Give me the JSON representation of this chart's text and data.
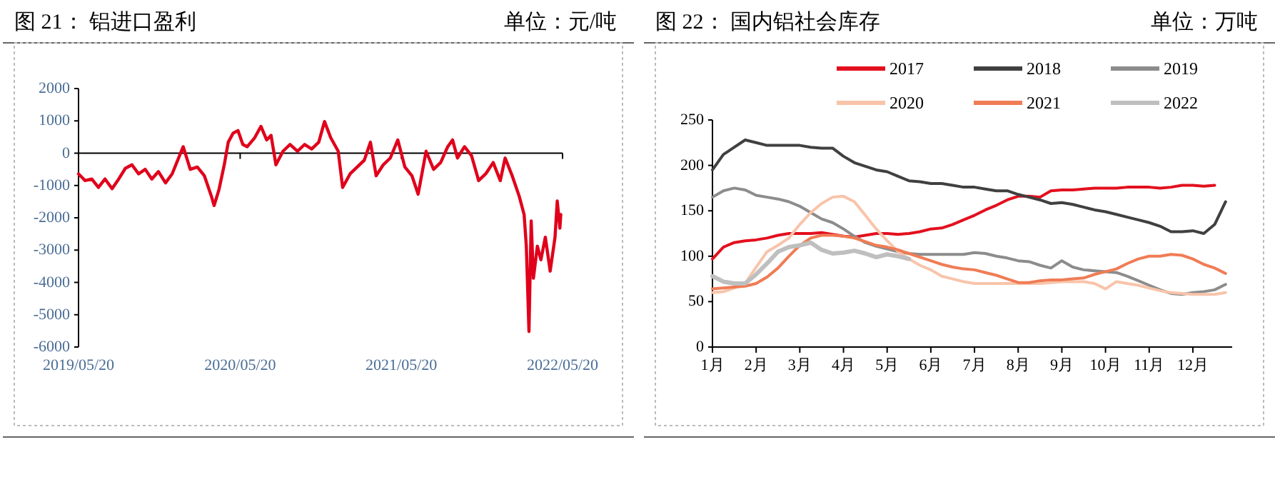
{
  "chart_data": [
    {
      "type": "line",
      "title": "图 21：  铝进口盈利",
      "annotations": [
        "单位：元/吨"
      ],
      "x": [
        "2019-05-20",
        "2019-06-04",
        "2019-06-19",
        "2019-07-04",
        "2019-07-19",
        "2019-08-04",
        "2019-08-19",
        "2019-09-03",
        "2019-09-18",
        "2019-10-03",
        "2019-10-18",
        "2019-11-02",
        "2019-11-17",
        "2019-12-03",
        "2019-12-18",
        "2020-01-12",
        "2020-01-28",
        "2020-02-13",
        "2020-02-29",
        "2020-03-16",
        "2020-03-22",
        "2020-04-02",
        "2020-04-14",
        "2020-04-23",
        "2020-05-04",
        "2020-05-15",
        "2020-05-26",
        "2020-06-05",
        "2020-06-22",
        "2020-07-06",
        "2020-07-19",
        "2020-07-29",
        "2020-08-09",
        "2020-08-25",
        "2020-09-10",
        "2020-09-27",
        "2020-10-13",
        "2020-10-29",
        "2020-11-14",
        "2020-11-27",
        "2020-12-11",
        "2020-12-28",
        "2021-01-07",
        "2021-01-24",
        "2021-02-09",
        "2021-02-25",
        "2021-03-11",
        "2021-03-24",
        "2021-04-09",
        "2021-04-25",
        "2021-05-12",
        "2021-05-28",
        "2021-06-13",
        "2021-06-27",
        "2021-07-15",
        "2021-08-01",
        "2021-08-17",
        "2021-09-02",
        "2021-09-13",
        "2021-09-24",
        "2021-10-10",
        "2021-10-26",
        "2021-11-11",
        "2021-11-27",
        "2021-12-14",
        "2021-12-30",
        "2022-01-10",
        "2022-01-26",
        "2022-02-11",
        "2022-02-22",
        "2022-02-27",
        "2022-03-05",
        "2022-03-10",
        "2022-03-15",
        "2022-03-24",
        "2022-04-01",
        "2022-04-11",
        "2022-04-22",
        "2022-05-03",
        "2022-05-08",
        "2022-05-14",
        "2022-05-16"
      ],
      "series": [
        {
          "color": "#e0001b",
          "values": [
            -640,
            -850,
            -800,
            -1060,
            -800,
            -1100,
            -800,
            -470,
            -360,
            -640,
            -500,
            -800,
            -570,
            -920,
            -640,
            200,
            -500,
            -430,
            -700,
            -1340,
            -1620,
            -1130,
            -360,
            340,
            620,
            700,
            270,
            200,
            480,
            830,
            410,
            550,
            -360,
            60,
            270,
            60,
            270,
            130,
            340,
            980,
            480,
            60,
            -1060,
            -640,
            -430,
            -220,
            340,
            -700,
            -360,
            -150,
            410,
            -430,
            -700,
            -1270,
            60,
            -500,
            -290,
            200,
            410,
            -150,
            200,
            -80,
            -850,
            -640,
            -290,
            -850,
            -150,
            -700,
            -1340,
            -1900,
            -2880,
            -5520,
            -2100,
            -3870,
            -2880,
            -3300,
            -2600,
            -3650,
            -2600,
            -1480,
            -2320,
            -1900
          ]
        }
      ],
      "xlim": [
        "2019-05-20",
        "2022-05-20"
      ],
      "xticks": [
        {
          "value": "2019-05-20",
          "label": "2019/05/20"
        },
        {
          "value": "2020-05-20",
          "label": "2020/05/20"
        },
        {
          "value": "2021-05-20",
          "label": "2021/05/20"
        },
        {
          "value": "2022-05-20",
          "label": "2022/05/20"
        }
      ],
      "ylim": [
        -6000,
        2000
      ],
      "yticks": [
        2000,
        1000,
        0,
        -1000,
        -2000,
        -3000,
        -4000,
        -5000,
        -6000
      ]
    },
    {
      "type": "line",
      "title": "图 22：  国内铝社会库存",
      "annotations": [
        "单位：万吨"
      ],
      "legend": "top",
      "x": [
        1,
        1.25,
        1.5,
        1.75,
        2,
        2.25,
        2.5,
        2.75,
        3,
        3.25,
        3.5,
        3.75,
        4,
        4.25,
        4.5,
        4.75,
        5,
        5.25,
        5.5,
        5.75,
        6,
        6.25,
        6.5,
        6.75,
        7,
        7.25,
        7.5,
        7.75,
        8,
        8.25,
        8.5,
        8.75,
        9,
        9.25,
        9.5,
        9.75,
        10,
        10.25,
        10.5,
        10.75,
        11,
        11.25,
        11.5,
        11.75,
        12,
        12.25,
        12.5,
        12.75
      ],
      "series": [
        {
          "name": "2017",
          "color": "#e3101e",
          "values": [
            97,
            110,
            115,
            117,
            118,
            120,
            123,
            125,
            125,
            125,
            126,
            124,
            122,
            121,
            123,
            125,
            125,
            124,
            125,
            127,
            130,
            131,
            135,
            140,
            145,
            151,
            156,
            162,
            166,
            166,
            165,
            172,
            173,
            173,
            174,
            175,
            175,
            175,
            176,
            176,
            176,
            175,
            176,
            178,
            178,
            177,
            178,
            null
          ]
        },
        {
          "name": "2018",
          "color": "#404040",
          "values": [
            195,
            212,
            220,
            228,
            225,
            222,
            222,
            222,
            222,
            220,
            219,
            219,
            210,
            203,
            199,
            195,
            193,
            188,
            183,
            182,
            180,
            180,
            178,
            176,
            176,
            174,
            172,
            172,
            168,
            165,
            162,
            158,
            159,
            157,
            154,
            151,
            149,
            146,
            143,
            140,
            137,
            133,
            127,
            127,
            128,
            125,
            135,
            160
          ]
        },
        {
          "name": "2019",
          "color": "#8c8c8c",
          "values": [
            165,
            172,
            175,
            173,
            167,
            165,
            163,
            160,
            155,
            148,
            141,
            137,
            130,
            122,
            115,
            111,
            108,
            105,
            103,
            102,
            102,
            102,
            102,
            102,
            104,
            103,
            100,
            98,
            95,
            94,
            90,
            87,
            95,
            88,
            85,
            84,
            83,
            82,
            78,
            73,
            68,
            63,
            59,
            58,
            60,
            61,
            63,
            69
          ]
        },
        {
          "name": "2020",
          "color": "#f8c4aa",
          "values": [
            60,
            61,
            65,
            70,
            88,
            105,
            112,
            120,
            135,
            148,
            158,
            165,
            166,
            160,
            145,
            130,
            117,
            105,
            97,
            90,
            85,
            78,
            75,
            72,
            70,
            70,
            70,
            70,
            70,
            70,
            70,
            71,
            72,
            72,
            72,
            70,
            64,
            72,
            70,
            68,
            65,
            62,
            60,
            59,
            58,
            58,
            58,
            60
          ]
        },
        {
          "name": "2021",
          "color": "#f07c55",
          "values": [
            64,
            65,
            66,
            67,
            70,
            77,
            87,
            100,
            112,
            120,
            123,
            123,
            122,
            120,
            116,
            112,
            110,
            107,
            103,
            99,
            95,
            91,
            88,
            86,
            85,
            82,
            79,
            75,
            71,
            71,
            73,
            74,
            74,
            75,
            76,
            80,
            83,
            86,
            92,
            97,
            100,
            100,
            102,
            101,
            97,
            91,
            87,
            81
          ]
        },
        {
          "name": "2022",
          "color": "#bfbfbf",
          "values": [
            78,
            72,
            70,
            70,
            80,
            92,
            105,
            110,
            112,
            115,
            107,
            103,
            104,
            106,
            103,
            99,
            102,
            100,
            97,
            null,
            null,
            null,
            null,
            null,
            null,
            null,
            null,
            null,
            null,
            null,
            null,
            null,
            null,
            null,
            null,
            null,
            null,
            null,
            null,
            null,
            null,
            null,
            null,
            null,
            null,
            null,
            null,
            null
          ]
        }
      ],
      "xlim": [
        1,
        12.9
      ],
      "xticks": [
        {
          "value": 1,
          "label": "1月"
        },
        {
          "value": 2,
          "label": "2月"
        },
        {
          "value": 3,
          "label": "3月"
        },
        {
          "value": 4,
          "label": "4月"
        },
        {
          "value": 5,
          "label": "5月"
        },
        {
          "value": 6,
          "label": "6月"
        },
        {
          "value": 7,
          "label": "7月"
        },
        {
          "value": 8,
          "label": "8月"
        },
        {
          "value": 9,
          "label": "9月"
        },
        {
          "value": 10,
          "label": "10月"
        },
        {
          "value": 11,
          "label": "11月"
        },
        {
          "value": 12,
          "label": "12月"
        }
      ],
      "ylim": [
        0,
        250
      ],
      "yticks": [
        0,
        50,
        100,
        150,
        200,
        250
      ]
    }
  ]
}
